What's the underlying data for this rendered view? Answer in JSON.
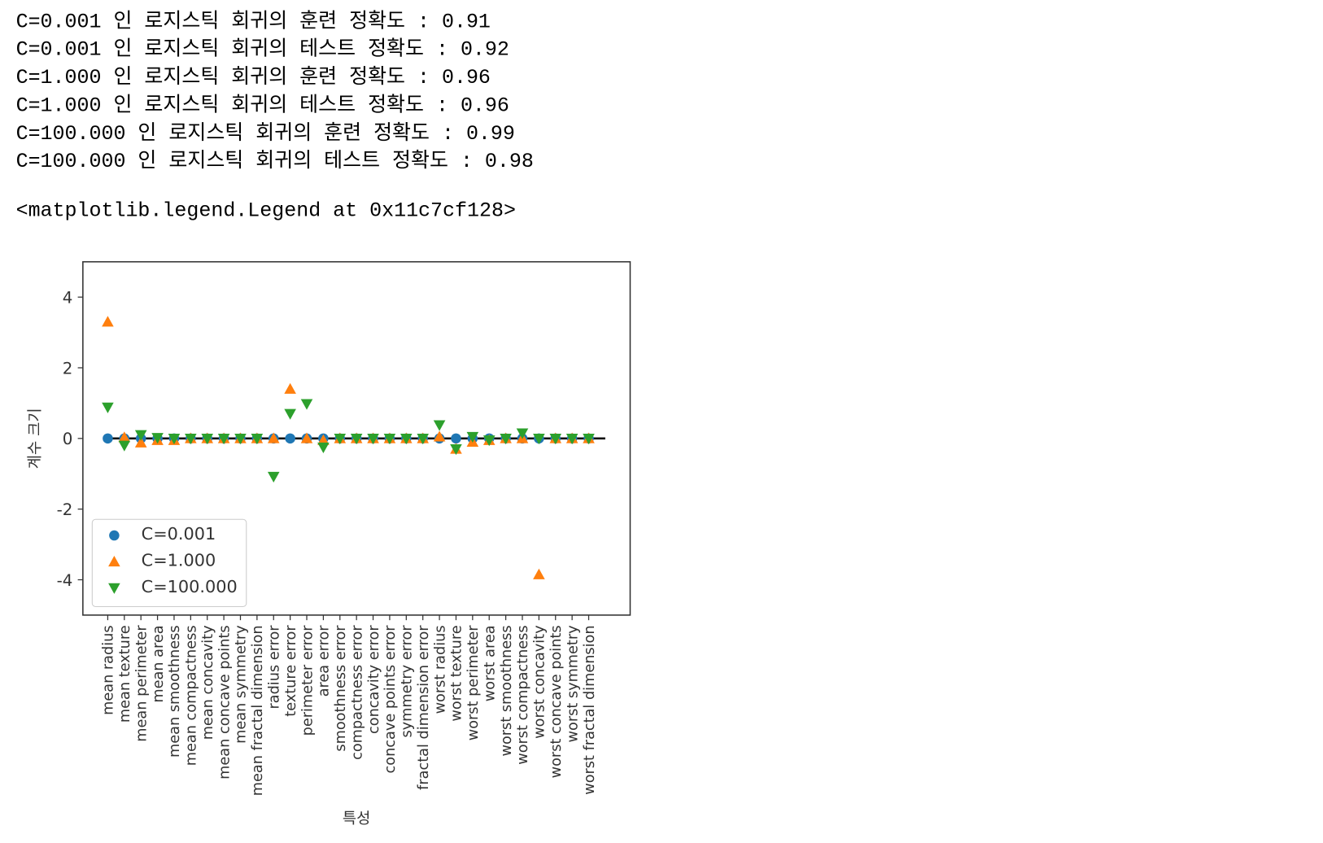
{
  "output_lines": [
    "C=0.001 인 로지스틱 회귀의 훈련 정확도 : 0.91",
    "C=0.001 인 로지스틱 회귀의 테스트 정확도 : 0.92",
    "C=1.000 인 로지스틱 회귀의 훈련 정확도 : 0.96",
    "C=1.000 인 로지스틱 회귀의 테스트 정확도 : 0.96",
    "C=100.000 인 로지스틱 회귀의 훈련 정확도 : 0.99",
    "C=100.000 인 로지스틱 회귀의 테스트 정확도 : 0.98"
  ],
  "repr": "<matplotlib.legend.Legend at 0x11c7cf128>",
  "chart_data": {
    "type": "scatter",
    "xlabel": "특성",
    "ylabel": "계수 크기",
    "categories": [
      "mean radius",
      "mean texture",
      "mean perimeter",
      "mean area",
      "mean smoothness",
      "mean compactness",
      "mean concavity",
      "mean concave points",
      "mean symmetry",
      "mean fractal dimension",
      "radius error",
      "texture error",
      "perimeter error",
      "area error",
      "smoothness error",
      "compactness error",
      "concavity error",
      "concave points error",
      "symmetry error",
      "fractal dimension error",
      "worst radius",
      "worst texture",
      "worst perimeter",
      "worst area",
      "worst smoothness",
      "worst compactness",
      "worst concavity",
      "worst concave points",
      "worst symmetry",
      "worst fractal dimension"
    ],
    "xlim": [
      -1.5,
      31.5
    ],
    "ylim": [
      -5,
      5
    ],
    "yticks": [
      -4,
      -2,
      0,
      2,
      4
    ],
    "hline": {
      "y": 0,
      "xmin": 0,
      "xmax": 30
    },
    "legend": "lower left",
    "series": [
      {
        "name": "C=0.001",
        "color": "#1f77b4",
        "marker": "o",
        "values": [
          0,
          0,
          0,
          0,
          0,
          0,
          0,
          0,
          0,
          0,
          0,
          0,
          0,
          0,
          0,
          0,
          0,
          0,
          0,
          0,
          0,
          0,
          0,
          0,
          0,
          0,
          0,
          0,
          0,
          0
        ]
      },
      {
        "name": "C=1.000",
        "color": "#ff7f0e",
        "marker": "^",
        "values": [
          3.3,
          0.03,
          -0.12,
          -0.05,
          -0.05,
          0,
          0,
          0,
          0,
          0,
          0,
          1.4,
          0,
          -0.05,
          0,
          0,
          0,
          0,
          0,
          0,
          0.05,
          -0.3,
          -0.1,
          -0.05,
          0,
          0,
          -3.85,
          0,
          0,
          0
        ]
      },
      {
        "name": "C=100.000",
        "color": "#2ca02c",
        "marker": "v",
        "values": [
          0.88,
          -0.2,
          0.1,
          0.02,
          0,
          0,
          0,
          0,
          0,
          0,
          -1.08,
          0.7,
          0.98,
          -0.25,
          0,
          0,
          0,
          0,
          0,
          0,
          0.38,
          -0.3,
          0.05,
          -0.05,
          0,
          0.15,
          0,
          0,
          0,
          0
        ]
      }
    ]
  }
}
